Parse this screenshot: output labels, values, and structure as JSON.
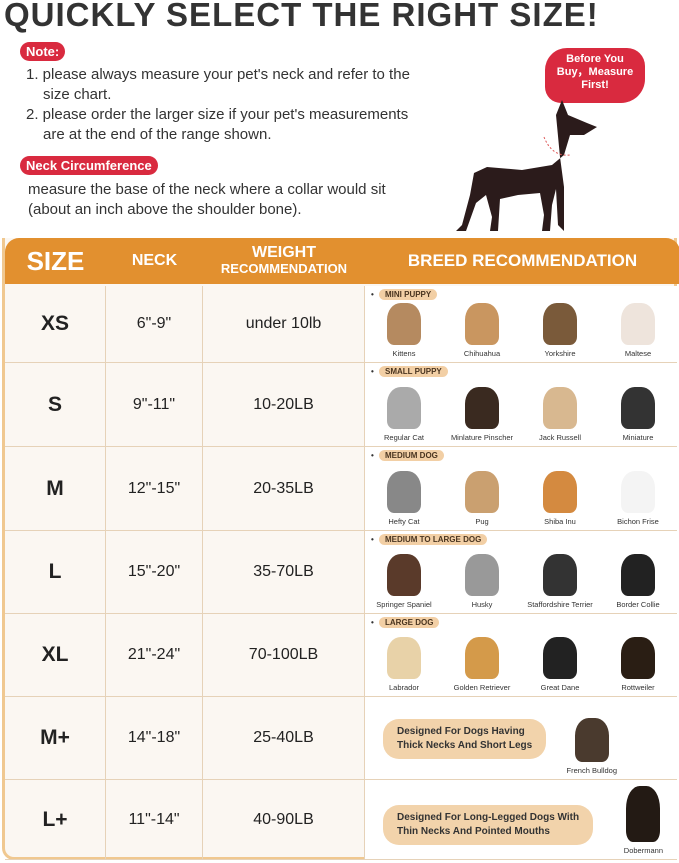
{
  "title": "QUICKLY SELECT THE RIGHT SIZE!",
  "note_label": "Note:",
  "notes": [
    "1. please always measure your pet's neck and refer to the",
    "size chart.",
    "2. please order the larger size if your pet's measurements",
    "are at the end of the range shown."
  ],
  "neck_label": "Neck  Circumference",
  "neck_text": [
    "measure the base of the neck where a collar would sit",
    "(about an inch above the shoulder bone)."
  ],
  "bubble": [
    "Before You",
    "Buy，Measure",
    "First!"
  ],
  "headers": {
    "size": "SIZE",
    "neck": "NECK",
    "weight1": "WEIGHT",
    "weight2": "RECOMMENDATION",
    "breed": "BREED RECOMMENDATION"
  },
  "rows": [
    {
      "size": "XS",
      "neck": "6\"-9\"",
      "weight": "under 10lb",
      "category": "MINI PUPPY",
      "animals": [
        "Kittens",
        "Chihuahua",
        "Yorkshire",
        "Maltese"
      ]
    },
    {
      "size": "S",
      "neck": "9\"-11\"",
      "weight": "10-20LB",
      "category": "SMALL PUPPY",
      "animals": [
        "Regular Cat",
        "Minlature Pinscher",
        "Jack Russell",
        "Miniature"
      ]
    },
    {
      "size": "M",
      "neck": "12\"-15\"",
      "weight": "20-35LB",
      "category": "MEDIUM DOG",
      "animals": [
        "Hefty Cat",
        "Pug",
        "Shiba Inu",
        "Bichon Frise"
      ]
    },
    {
      "size": "L",
      "neck": "15\"-20\"",
      "weight": "35-70LB",
      "category": "MEDIUM TO LARGE DOG",
      "animals": [
        "Springer Spaniel",
        "Husky",
        "Staffordshire Terrier",
        "Border Collie"
      ]
    },
    {
      "size": "XL",
      "neck": "21\"-24\"",
      "weight": "70-100LB",
      "category": "LARGE DOG",
      "animals": [
        "Labrador",
        "Golden Retriever",
        "Great Dane",
        "Rottweiler"
      ]
    },
    {
      "size": "M+",
      "neck": "14\"-18\"",
      "weight": "25-40LB",
      "design": [
        "Designed For Dogs Having",
        "Thick Necks And Short Legs"
      ],
      "animals": [
        "French Bulldog"
      ]
    },
    {
      "size": "L+",
      "neck": "11\"-14\"",
      "weight": "40-90LB",
      "design": [
        "Designed For Long-Legged Dogs With",
        "Thin Necks And Pointed Mouths"
      ],
      "animals": [
        "Dobermann"
      ]
    }
  ],
  "colors": {
    "accent": "#e2902f",
    "red": "#d92a3f",
    "pill": "#f2cfa5"
  }
}
